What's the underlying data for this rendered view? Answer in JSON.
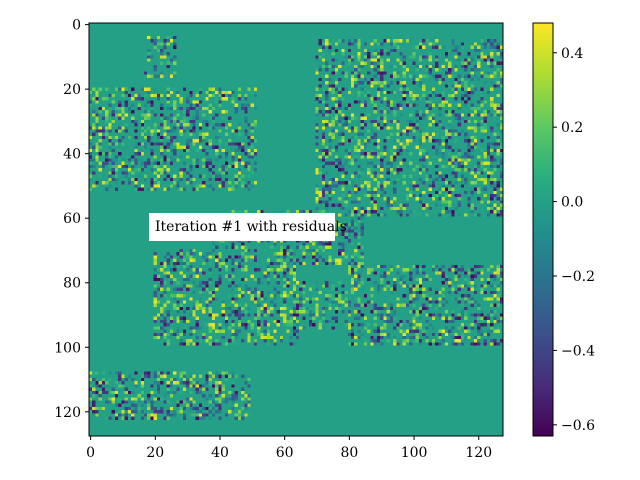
{
  "chart_data": {
    "type": "heatmap",
    "image": {
      "rows": 128,
      "cols": 128,
      "x_ticks": [
        0,
        20,
        40,
        60,
        80,
        100,
        120
      ],
      "y_ticks": [
        0,
        20,
        40,
        60,
        80,
        100,
        120
      ],
      "xlim": [
        -0.5,
        127.5
      ],
      "ylim": [
        127.5,
        -0.5
      ],
      "origin": "upper",
      "background_value": 0.0,
      "regions": [
        {
          "x": [
            17,
            27
          ],
          "y": [
            4,
            17
          ]
        },
        {
          "x": [
            0,
            52
          ],
          "y": [
            20,
            52
          ]
        },
        {
          "x": [
            38,
            85
          ],
          "y": [
            58,
            75
          ]
        },
        {
          "x": [
            20,
            65
          ],
          "y": [
            70,
            100
          ]
        },
        {
          "x": [
            60,
            87
          ],
          "y": [
            80,
            95
          ]
        },
        {
          "x": [
            0,
            50
          ],
          "y": [
            108,
            123
          ]
        },
        {
          "x": [
            70,
            128
          ],
          "y": [
            5,
            60
          ]
        },
        {
          "x": [
            90,
            128
          ],
          "y": [
            25,
            45
          ]
        },
        {
          "x": [
            80,
            128
          ],
          "y": [
            75,
            100
          ]
        }
      ]
    },
    "colormap": "viridis",
    "colorbar": {
      "range": [
        -0.63,
        0.48
      ],
      "ticks": [
        0.4,
        0.2,
        0.0,
        -0.2,
        -0.4,
        -0.6
      ],
      "tick_labels": [
        "0.4",
        "0.2",
        "0.0",
        "−0.2",
        "−0.4",
        "−0.6"
      ]
    },
    "annotation": "Iteration #1 with residuals",
    "grid": false
  }
}
